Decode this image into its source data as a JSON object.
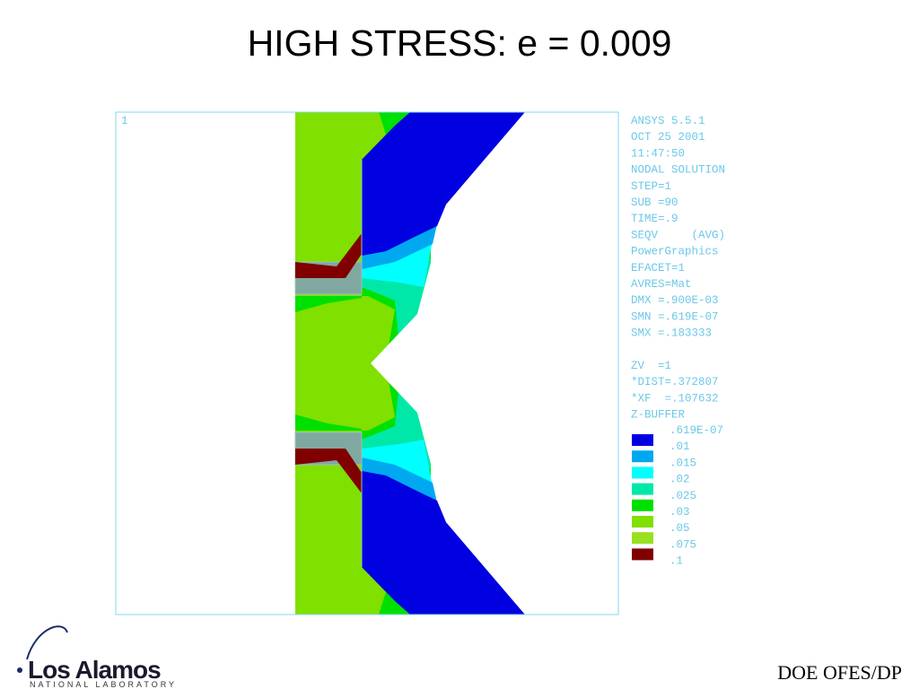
{
  "header": {
    "title": "HIGH STRESS: e = 0.009"
  },
  "plot": {
    "window_number": "1",
    "info": [
      "ANSYS 5.5.1",
      "OCT 25 2001",
      "11:47:50",
      "NODAL SOLUTION",
      "STEP=1",
      "SUB =90",
      "TIME=.9",
      "SEQV     (AVG)",
      "PowerGraphics",
      "EFACET=1",
      "AVRES=Mat",
      "DMX =.900E-03",
      "SMN =.619E-07",
      "SMX =.183333"
    ],
    "view": [
      "ZV  =1",
      "*DIST=.372807",
      "*XF  =.107632",
      "Z-BUFFER"
    ],
    "legend": {
      "labels": [
        ".619E-07",
        ".01",
        ".015",
        ".02",
        ".025",
        ".03",
        ".05",
        ".075",
        ".1"
      ],
      "colors": [
        "#0000e0",
        "#00a8f0",
        "#00ffff",
        "#00e8a8",
        "#00e000",
        "#80e000",
        "#98e020",
        "#800000"
      ]
    }
  },
  "footer": {
    "logo": "Los Alamos",
    "logo_sub": "NATIONAL LABORATORY",
    "program": "DOE OFES/DP"
  }
}
